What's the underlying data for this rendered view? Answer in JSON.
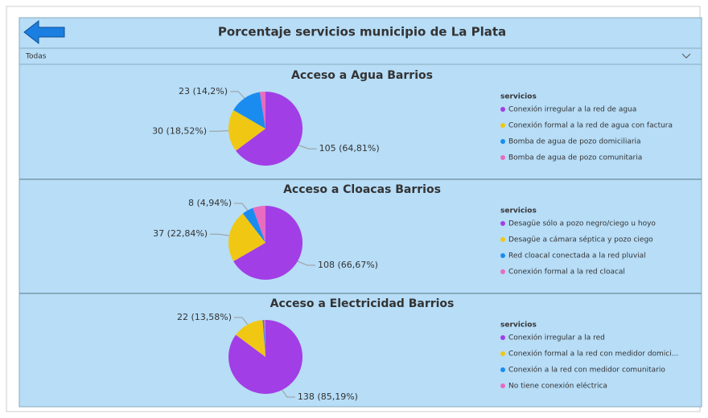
{
  "header": {
    "title": "Porcentaje servicios municipio de La Plata",
    "filter": "Todas"
  },
  "chart_data": [
    {
      "type": "pie",
      "title": "Acceso a Agua Barrios",
      "legend_title": "servicios",
      "categories": [
        "Conexión irregular a la red de agua",
        "Conexión formal a la red de agua con factura",
        "Bomba de agua de pozo domiciliaria",
        "Bomba de agua de pozo comunitaria"
      ],
      "values": [
        105,
        30,
        23,
        4
      ],
      "value_labels": [
        "105 (64,81%)",
        "30 (18,52%)",
        "23 (14,2%)",
        null
      ],
      "colors": [
        "#a23ee6",
        "#f0c814",
        "#1a8cf0",
        "#e86cc0"
      ]
    },
    {
      "type": "pie",
      "title": "Acceso a Cloacas Barrios",
      "legend_title": "servicios",
      "categories": [
        "Desagüe sólo a pozo negro/ciego u hoyo",
        "Desagüe a cámara séptica y pozo ciego",
        "Red cloacal conectada a la red pluvial",
        "Conexión formal a la red cloacal"
      ],
      "values": [
        108,
        37,
        8,
        9
      ],
      "value_labels": [
        "108 (66,67%)",
        "37 (22,84%)",
        "8 (4,94%)",
        null
      ],
      "colors": [
        "#a23ee6",
        "#f0c814",
        "#1a8cf0",
        "#e86cc0"
      ]
    },
    {
      "type": "pie",
      "title": "Acceso a Electricidad Barrios",
      "legend_title": "servicios",
      "categories": [
        "Conexión irregular a la red",
        "Conexión formal a la red con medidor domici...",
        "Conexión a la red con medidor comunitario",
        "No tiene conexión eléctrica"
      ],
      "values": [
        138,
        22,
        1,
        1
      ],
      "value_labels": [
        "138 (85,19%)",
        "22 (13,58%)",
        null,
        null
      ],
      "colors": [
        "#a23ee6",
        "#f0c814",
        "#1a8cf0",
        "#e86cc0"
      ]
    }
  ]
}
